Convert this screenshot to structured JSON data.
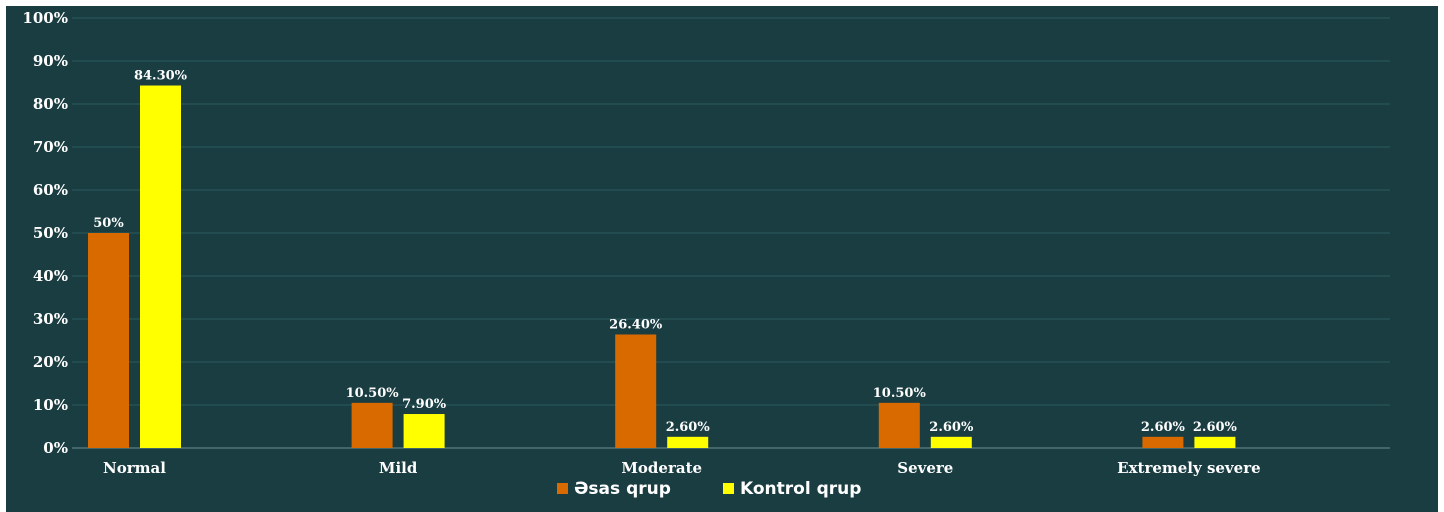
{
  "chart_data": {
    "type": "bar",
    "categories": [
      "Normal",
      "Mild",
      "Moderate",
      "Severe",
      "Extremely severe"
    ],
    "series": [
      {
        "name": "Əsas qrup",
        "values": [
          50,
          10.5,
          26.4,
          10.5,
          2.6
        ],
        "labels": [
          "50%",
          "10.50%",
          "26.40%",
          "10.50%",
          "2.60%"
        ],
        "color": "#d96a00"
      },
      {
        "name": "Kontrol qrup",
        "values": [
          84.3,
          7.9,
          2.6,
          2.6,
          2.6
        ],
        "labels": [
          "84.30%",
          "7.90%",
          "2.60%",
          "2.60%",
          "2.60%"
        ],
        "color": "#ffff00"
      }
    ],
    "ylim": [
      0,
      100
    ],
    "yticks": [
      "0%",
      "10%",
      "20%",
      "30%",
      "40%",
      "50%",
      "60%",
      "70%",
      "80%",
      "90%",
      "100%"
    ],
    "grid": true,
    "legend": "bottom-center",
    "background": "#1a3d42",
    "grid_color": "#2c5a5f"
  }
}
